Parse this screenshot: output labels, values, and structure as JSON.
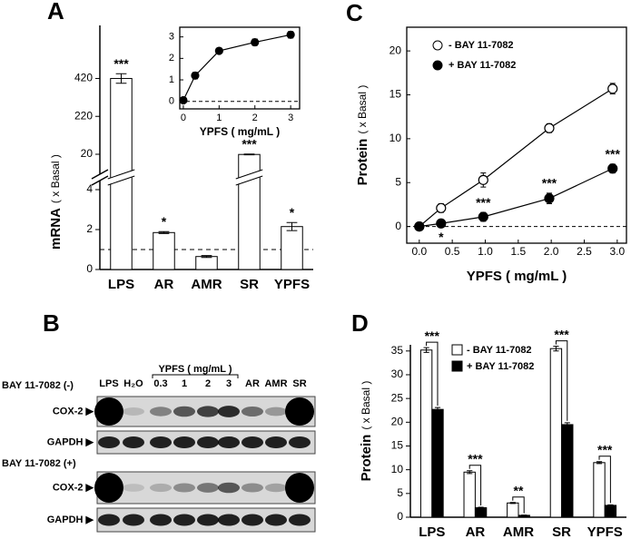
{
  "chart_data": [
    {
      "type": "bar",
      "panel": "A",
      "ylabel": "mRNA",
      "ylabel_unit": "( x Basal )",
      "categories": [
        "LPS",
        "AR",
        "AMR",
        "SR",
        "YPFS"
      ],
      "values": [
        420,
        1.85,
        0.65,
        19,
        2.15
      ],
      "errors": [
        25,
        0.05,
        0.05,
        2,
        0.2
      ],
      "significance": [
        "***",
        "*",
        null,
        "***",
        "*"
      ],
      "color": "#ffffff",
      "baseline": 1,
      "ylim": [
        0,
        700
      ],
      "ybreak": [
        4,
        20
      ],
      "yticks": [
        0,
        2,
        4,
        20,
        220,
        420
      ]
    },
    {
      "type": "line",
      "xlabel": "YPFS ( mg/mL )",
      "x": [
        0,
        0.33,
        1,
        2,
        3
      ],
      "series": [
        {
          "values": [
            0.05,
            1.2,
            2.35,
            2.75,
            3.1
          ],
          "errors": [
            0.05,
            0.15,
            0.12,
            0.15,
            0.15
          ],
          "color": "#000000",
          "marker": "filled"
        }
      ],
      "baseline": 0,
      "frame": true,
      "xlim": [
        -0.1,
        3.25
      ],
      "xticks": [
        0,
        1,
        2,
        3
      ],
      "ylim": [
        -0.35,
        3.45
      ],
      "yticks": [
        0,
        1,
        2,
        3
      ]
    },
    {
      "type": "line",
      "panel": "C",
      "ylabel": "Protein",
      "ylabel_unit": "( x Basal )",
      "xlabel": "YPFS ( mg/mL )",
      "x": [
        0,
        0.33,
        0.97,
        1.97,
        2.93
      ],
      "series": [
        {
          "name": "-  BAY 11-7082",
          "values": [
            0,
            2.1,
            5.3,
            11.2,
            15.7
          ],
          "errors": [
            0.2,
            0.5,
            0.8,
            0.5,
            0.6
          ],
          "color": "#000000",
          "marker": "open"
        },
        {
          "name": "+ BAY 11-7082",
          "values": [
            0,
            0.35,
            1.1,
            3.2,
            6.6
          ],
          "errors": [
            0.1,
            0.2,
            0.5,
            0.6,
            0.5
          ],
          "color": "#000000",
          "marker": "filled",
          "significance": [
            null,
            "*",
            "***",
            "***",
            "***"
          ]
        }
      ],
      "baseline": 0,
      "frame": true,
      "xlim": [
        -0.19,
        3.14
      ],
      "xticks": [
        {
          "value": 0,
          "label": "0.0"
        },
        {
          "value": 0.5,
          "label": "0.5"
        },
        {
          "value": 1,
          "label": "1.0"
        },
        {
          "value": 1.5,
          "label": "1.5"
        },
        {
          "value": 2,
          "label": "2.0"
        },
        {
          "value": 2.5,
          "label": "2.5"
        },
        {
          "value": 3,
          "label": "3.0"
        }
      ],
      "ylim": [
        -1.9,
        22.7
      ],
      "yticks": [
        0,
        5,
        10,
        15,
        20
      ]
    },
    {
      "type": "bar",
      "panel": "D",
      "ylabel": "Protein",
      "ylabel_unit": "( x Basal )",
      "categories": [
        "LPS",
        "AR",
        "AMR",
        "SR",
        "YPFS"
      ],
      "series": [
        {
          "name": "-  BAY 11-7082",
          "values": [
            35.2,
            9.5,
            3,
            35.5,
            11.5
          ],
          "errors": [
            0.5,
            0.3,
            0.1,
            0.5,
            0.2
          ],
          "color": "#ffffff"
        },
        {
          "name": "+ BAY 11-7082",
          "values": [
            22.7,
            2,
            0.4,
            19.5,
            2.5
          ],
          "errors": [
            0.4,
            0.1,
            0.05,
            0.4,
            0.1
          ],
          "color": "#000000"
        }
      ],
      "significance": [
        "***",
        "***",
        "**",
        "***",
        "***"
      ],
      "ylim": [
        0,
        36.3
      ],
      "yticks": [
        0,
        5,
        10,
        15,
        20,
        25,
        30,
        35
      ]
    }
  ],
  "blot": {
    "panel": "B",
    "lanes": [
      "LPS",
      "H₂O",
      "0.3",
      "1",
      "2",
      "3",
      "AR",
      "AMR",
      "SR"
    ],
    "group_label": "YPFS ( mg/mL )",
    "conditions": [
      "BAY 11-7082 (-)",
      "BAY 11-7082 (+)"
    ],
    "rows": [
      "COX-2 ▶",
      "GAPDH ▶"
    ]
  }
}
